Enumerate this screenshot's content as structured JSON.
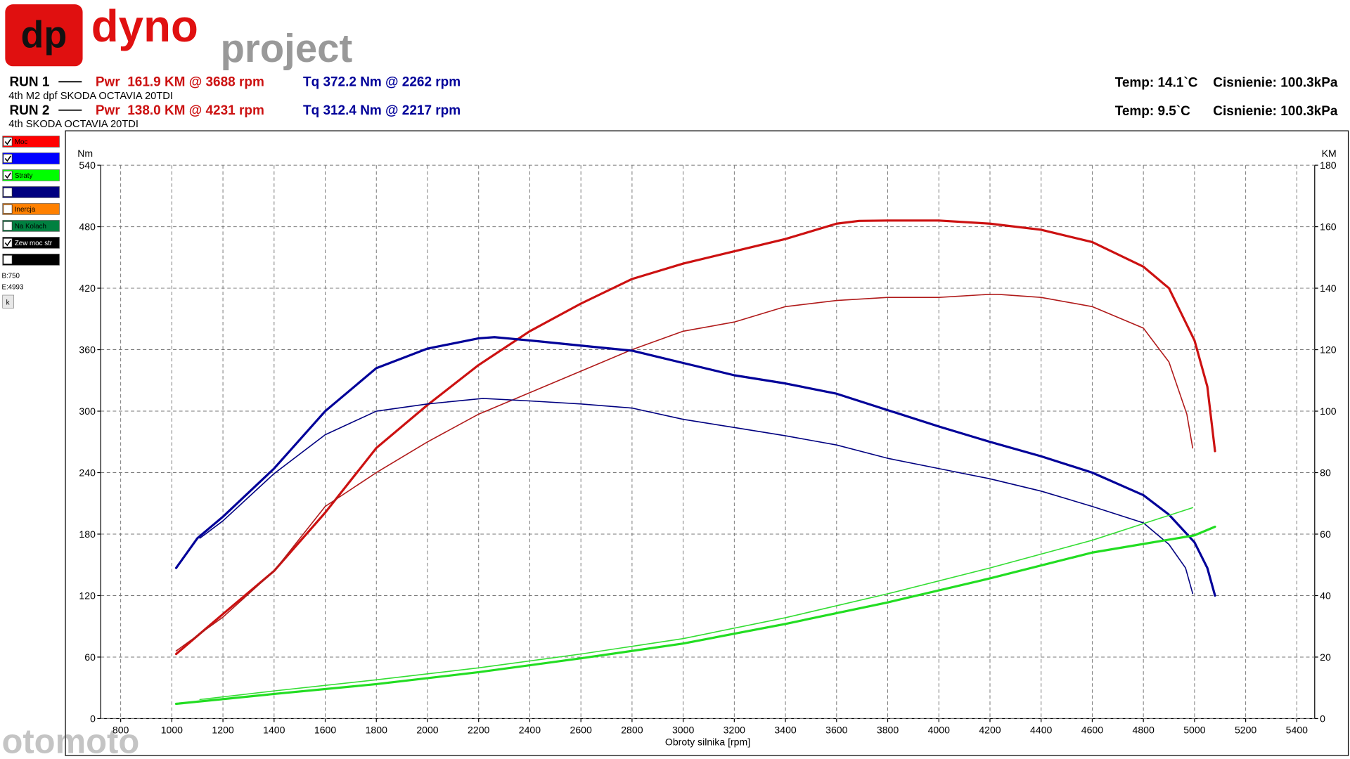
{
  "header": {
    "logo_mark": "dp",
    "logo_word1": "dyno",
    "logo_word2": "project",
    "runs": [
      {
        "run": "RUN 1",
        "power": "Pwr  161.9 KM @ 3688 rpm",
        "torque": "Tq 372.2 Nm @ 2262 rpm",
        "description": "4th M2 dpf SKODA OCTAVIA 20TDI",
        "temp": "Temp: 14.1`C",
        "pressure": "Cisnienie: 100.3kPa"
      },
      {
        "run": "RUN 2",
        "power": "Pwr  138.0 KM @ 4231 rpm",
        "torque": "Tq 312.4 Nm @ 2217 rpm",
        "description": "4th SKODA OCTAVIA 20TDI",
        "temp": "Temp: 9.5`C",
        "pressure": "Cisnienie: 100.3kPa"
      }
    ]
  },
  "panel": {
    "items": [
      {
        "label": "Moc",
        "color": "#ff0000",
        "checked": true
      },
      {
        "color": "#0000ff",
        "checked": true
      },
      {
        "label": "Straty",
        "color": "#00ff00",
        "checked": true
      },
      {
        "color": "#000080",
        "checked": false
      },
      {
        "label": "Inercja",
        "color": "#ff8000",
        "checked": false
      },
      {
        "label": "Na Kolach",
        "color": "#008040",
        "checked": false
      },
      {
        "label": "Zew moc str",
        "color": "#000000",
        "checked": true
      },
      {
        "color": "#000000",
        "checked": false
      }
    ],
    "begin": "B:750",
    "end": "E:4993",
    "button": "k"
  },
  "watermark": "otomoto",
  "chart_data": {
    "type": "line",
    "xlabel": "Obroty silnika [rpm]",
    "ylabel": "Nm",
    "y2label": "KM",
    "xlim": [
      722,
      5470
    ],
    "xticks": [
      800,
      1000,
      1200,
      1400,
      1600,
      1800,
      2000,
      2200,
      2400,
      2600,
      2800,
      3000,
      3200,
      3400,
      3600,
      3800,
      4000,
      4200,
      4400,
      4600,
      4800,
      5000,
      5200,
      5400
    ],
    "ylim": [
      0,
      540
    ],
    "yticks": [
      0,
      60,
      120,
      180,
      240,
      300,
      360,
      420,
      480,
      540
    ],
    "y2lim": [
      0,
      180
    ],
    "y2ticks": [
      0,
      20,
      40,
      60,
      80,
      100,
      120,
      140,
      160,
      180
    ],
    "grid": true,
    "series": [
      {
        "color": "#cc1111",
        "axis": "y2",
        "x": [
          1017,
          1200,
          1400,
          1600,
          1800,
          2000,
          2200,
          2400,
          2600,
          2800,
          3000,
          3200,
          3400,
          3600,
          3688,
          3800,
          4000,
          4200,
          4400,
          4600,
          4800,
          4900,
          5000,
          5050,
          5080
        ],
        "values": [
          21,
          34,
          48,
          67,
          88,
          102,
          115,
          126,
          135,
          143,
          148,
          152,
          156,
          161,
          161.9,
          162,
          162,
          161,
          159,
          155,
          147,
          140,
          123,
          108,
          87
        ]
      },
      {
        "color": "#b01a1a",
        "axis": "y2",
        "x": [
          1017,
          1200,
          1400,
          1600,
          1800,
          2000,
          2200,
          2400,
          2600,
          2800,
          3000,
          3200,
          3400,
          3600,
          3800,
          4000,
          4200,
          4231,
          4400,
          4600,
          4800,
          4900,
          4970,
          4993
        ],
        "values": [
          22,
          33,
          48,
          69,
          80,
          90,
          99,
          106,
          113,
          120,
          126,
          129,
          134,
          136,
          137,
          137,
          138,
          138,
          137,
          134,
          127,
          116,
          99,
          88
        ]
      },
      {
        "color": "#000099",
        "x": [
          1017,
          1100,
          1200,
          1400,
          1600,
          1800,
          2000,
          2200,
          2262,
          2400,
          2600,
          2800,
          3000,
          3200,
          3400,
          3600,
          3800,
          4000,
          4200,
          4400,
          4600,
          4800,
          4900,
          5000,
          5050,
          5080
        ],
        "values": [
          147,
          176,
          197,
          244,
          300,
          342,
          361,
          371,
          372.2,
          369,
          364,
          359,
          347,
          335,
          327,
          317,
          301,
          285,
          270,
          256,
          240,
          218,
          199,
          172,
          147,
          120
        ]
      },
      {
        "color": "#000080",
        "x": [
          1110,
          1200,
          1400,
          1600,
          1800,
          2000,
          2200,
          2217,
          2400,
          2600,
          2800,
          3000,
          3200,
          3400,
          3600,
          3800,
          4000,
          4200,
          4400,
          4600,
          4800,
          4900,
          4965,
          4993
        ],
        "values": [
          176,
          193,
          239,
          277,
          300,
          307,
          312,
          312.4,
          310,
          307,
          303,
          292,
          284,
          276,
          267,
          254,
          244,
          234,
          222,
          207,
          191,
          170,
          147,
          122
        ]
      },
      {
        "color": "#22dd22",
        "axis": "y2",
        "x": [
          1017,
          1400,
          1800,
          2200,
          2600,
          3000,
          3400,
          3800,
          4200,
          4600,
          5000,
          5080
        ],
        "values": [
          4.8,
          8,
          11.2,
          15.1,
          19.6,
          24.4,
          30.8,
          37.8,
          45.6,
          54,
          59.6,
          62.4
        ]
      },
      {
        "color": "#33dd33",
        "axis": "y2",
        "x": [
          1110,
          1400,
          1800,
          2200,
          2600,
          3000,
          3400,
          3800,
          4200,
          4600,
          4993
        ],
        "values": [
          6.2,
          9,
          12.6,
          16.5,
          21,
          26,
          32.8,
          40.6,
          49,
          58,
          68.6
        ]
      }
    ]
  }
}
